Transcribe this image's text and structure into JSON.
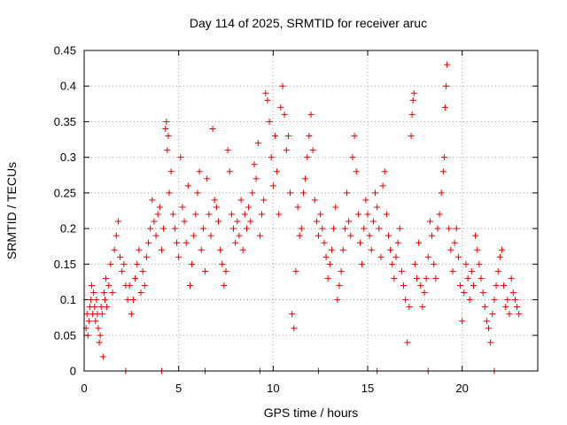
{
  "chart_data": {
    "type": "scatter",
    "title": "Day 114 of 2025, SRMTID for receiver aruc",
    "xlabel": "GPS time / hours",
    "ylabel": "SRMTID / TECUs",
    "xlim": [
      0,
      24
    ],
    "ylim": [
      0,
      0.45
    ],
    "xticks": [
      0,
      5,
      10,
      15,
      20
    ],
    "xtick_labels": [
      "0",
      "5",
      "10",
      "15",
      "20"
    ],
    "yticks": [
      0,
      0.05,
      0.1,
      0.15,
      0.2,
      0.25,
      0.3,
      0.35,
      0.4,
      0.45
    ],
    "ytick_labels": [
      "0",
      "0.05",
      "0.1",
      "0.15",
      "0.2",
      "0.25",
      "0.3",
      "0.35",
      "0.4",
      "0.45"
    ],
    "grid": true,
    "marker": "+",
    "color": "#e00000",
    "series": [
      {
        "name": "SRMTID",
        "points": [
          [
            0.1,
            0.06
          ],
          [
            0.15,
            0.08
          ],
          [
            0.2,
            0.05
          ],
          [
            0.25,
            0.07
          ],
          [
            0.3,
            0.09
          ],
          [
            0.35,
            0.1
          ],
          [
            0.4,
            0.12
          ],
          [
            0.45,
            0.08
          ],
          [
            0.5,
            0.11
          ],
          [
            0.55,
            0.09
          ],
          [
            0.6,
            0.07
          ],
          [
            0.65,
            0.1
          ],
          [
            0.7,
            0.08
          ],
          [
            0.75,
            0.06
          ],
          [
            0.8,
            0.04
          ],
          [
            0.85,
            0.05
          ],
          [
            0.9,
            0.09
          ],
          [
            0.95,
            0.08
          ],
          [
            1.0,
            0.02
          ],
          [
            1.05,
            0.11
          ],
          [
            1.1,
            0.1
          ],
          [
            1.15,
            0.13
          ],
          [
            1.2,
            0.09
          ],
          [
            1.3,
            0.12
          ],
          [
            1.4,
            0.15
          ],
          [
            1.5,
            0.11
          ],
          [
            1.6,
            0.17
          ],
          [
            1.7,
            0.19
          ],
          [
            1.8,
            0.21
          ],
          [
            1.9,
            0.16
          ],
          [
            2.0,
            0.14
          ],
          [
            2.1,
            0.15
          ],
          [
            2.2,
            0.12
          ],
          [
            2.3,
            0.1
          ],
          [
            2.4,
            0.12
          ],
          [
            2.5,
            0.08
          ],
          [
            2.6,
            0.1
          ],
          [
            2.7,
            0.13
          ],
          [
            2.8,
            0.15
          ],
          [
            2.9,
            0.17
          ],
          [
            3.0,
            0.11
          ],
          [
            3.1,
            0.14
          ],
          [
            3.2,
            0.12
          ],
          [
            3.3,
            0.16
          ],
          [
            3.4,
            0.18
          ],
          [
            3.5,
            0.2
          ],
          [
            3.6,
            0.24
          ],
          [
            3.7,
            0.21
          ],
          [
            3.8,
            0.19
          ],
          [
            3.9,
            0.22
          ],
          [
            4.0,
            0.23
          ],
          [
            4.1,
            0.17
          ],
          [
            4.2,
            0.2
          ],
          [
            4.3,
            0.34
          ],
          [
            4.35,
            0.35
          ],
          [
            4.4,
            0.31
          ],
          [
            4.45,
            0.33
          ],
          [
            4.5,
            0.25
          ],
          [
            4.6,
            0.28
          ],
          [
            4.7,
            0.22
          ],
          [
            4.8,
            0.2
          ],
          [
            4.9,
            0.18
          ],
          [
            5.0,
            0.16
          ],
          [
            5.1,
            0.3
          ],
          [
            5.2,
            0.23
          ],
          [
            5.3,
            0.21
          ],
          [
            5.4,
            0.18
          ],
          [
            5.5,
            0.26
          ],
          [
            5.6,
            0.12
          ],
          [
            5.7,
            0.15
          ],
          [
            5.8,
            0.19
          ],
          [
            5.9,
            0.22
          ],
          [
            6.0,
            0.25
          ],
          [
            6.1,
            0.28
          ],
          [
            6.2,
            0.17
          ],
          [
            6.3,
            0.2
          ],
          [
            6.4,
            0.14
          ],
          [
            6.5,
            0.27
          ],
          [
            6.6,
            0.22
          ],
          [
            6.7,
            0.19
          ],
          [
            6.8,
            0.34
          ],
          [
            6.9,
            0.24
          ],
          [
            7.0,
            0.23
          ],
          [
            7.1,
            0.21
          ],
          [
            7.2,
            0.17
          ],
          [
            7.3,
            0.15
          ],
          [
            7.4,
            0.12
          ],
          [
            7.5,
            0.14
          ],
          [
            7.6,
            0.31
          ],
          [
            7.7,
            0.28
          ],
          [
            7.8,
            0.22
          ],
          [
            7.9,
            0.2
          ],
          [
            8.0,
            0.18
          ],
          [
            8.1,
            0.21
          ],
          [
            8.2,
            0.19
          ],
          [
            8.3,
            0.24
          ],
          [
            8.4,
            0.17
          ],
          [
            8.5,
            0.22
          ],
          [
            8.6,
            0.2
          ],
          [
            8.7,
            0.23
          ],
          [
            8.8,
            0.21
          ],
          [
            8.9,
            0.25
          ],
          [
            9.0,
            0.29
          ],
          [
            9.1,
            0.27
          ],
          [
            9.2,
            0.32
          ],
          [
            9.3,
            0.19
          ],
          [
            9.4,
            0.22
          ],
          [
            9.5,
            0.24
          ],
          [
            9.6,
            0.39
          ],
          [
            9.7,
            0.38
          ],
          [
            9.8,
            0.35
          ],
          [
            9.9,
            0.3
          ],
          [
            10.0,
            0.26
          ],
          [
            10.1,
            0.33
          ],
          [
            10.2,
            0.28
          ],
          [
            10.3,
            0.22
          ],
          [
            10.4,
            0.37
          ],
          [
            10.5,
            0.4
          ],
          [
            10.6,
            0.36
          ],
          [
            10.7,
            0.31
          ],
          [
            10.8,
            0.33
          ],
          [
            10.9,
            0.25
          ],
          [
            11.0,
            0.08
          ],
          [
            11.1,
            0.06
          ],
          [
            11.2,
            0.14
          ],
          [
            11.3,
            0.23
          ],
          [
            11.4,
            0.19
          ],
          [
            11.5,
            0.2
          ],
          [
            11.6,
            0.25
          ],
          [
            11.7,
            0.27
          ],
          [
            11.8,
            0.3
          ],
          [
            11.9,
            0.33
          ],
          [
            12.0,
            0.36
          ],
          [
            12.1,
            0.31
          ],
          [
            12.2,
            0.24
          ],
          [
            12.3,
            0.21
          ],
          [
            12.4,
            0.19
          ],
          [
            12.5,
            0.22
          ],
          [
            12.6,
            0.2
          ],
          [
            12.7,
            0.18
          ],
          [
            12.8,
            0.16
          ],
          [
            12.9,
            0.13
          ],
          [
            13.0,
            0.15
          ],
          [
            13.1,
            0.17
          ],
          [
            13.2,
            0.2
          ],
          [
            13.3,
            0.23
          ],
          [
            13.4,
            0.1
          ],
          [
            13.5,
            0.12
          ],
          [
            13.6,
            0.14
          ],
          [
            13.7,
            0.17
          ],
          [
            13.8,
            0.2
          ],
          [
            13.9,
            0.25
          ],
          [
            14.0,
            0.21
          ],
          [
            14.1,
            0.19
          ],
          [
            14.2,
            0.3
          ],
          [
            14.3,
            0.33
          ],
          [
            14.4,
            0.28
          ],
          [
            14.5,
            0.22
          ],
          [
            14.6,
            0.18
          ],
          [
            14.7,
            0.15
          ],
          [
            14.8,
            0.2
          ],
          [
            14.9,
            0.24
          ],
          [
            15.0,
            0.22
          ],
          [
            15.1,
            0.19
          ],
          [
            15.2,
            0.17
          ],
          [
            15.3,
            0.21
          ],
          [
            15.4,
            0.25
          ],
          [
            15.5,
            0.23
          ],
          [
            15.6,
            0.2
          ],
          [
            15.7,
            0.16
          ],
          [
            15.8,
            0.26
          ],
          [
            15.9,
            0.28
          ],
          [
            16.0,
            0.22
          ],
          [
            16.1,
            0.19
          ],
          [
            16.2,
            0.17
          ],
          [
            16.3,
            0.15
          ],
          [
            16.4,
            0.13
          ],
          [
            16.5,
            0.16
          ],
          [
            16.6,
            0.18
          ],
          [
            16.7,
            0.2
          ],
          [
            16.8,
            0.14
          ],
          [
            16.9,
            0.12
          ],
          [
            17.0,
            0.1
          ],
          [
            17.1,
            0.04
          ],
          [
            17.2,
            0.09
          ],
          [
            17.3,
            0.33
          ],
          [
            17.35,
            0.36
          ],
          [
            17.4,
            0.38
          ],
          [
            17.45,
            0.39
          ],
          [
            17.5,
            0.15
          ],
          [
            17.6,
            0.13
          ],
          [
            17.7,
            0.18
          ],
          [
            17.8,
            0.12
          ],
          [
            17.9,
            0.09
          ],
          [
            18.0,
            0.11
          ],
          [
            18.1,
            0.13
          ],
          [
            18.2,
            0.16
          ],
          [
            18.3,
            0.21
          ],
          [
            18.4,
            0.19
          ],
          [
            18.5,
            0.15
          ],
          [
            18.6,
            0.13
          ],
          [
            18.7,
            0.2
          ],
          [
            18.8,
            0.22
          ],
          [
            18.9,
            0.25
          ],
          [
            19.0,
            0.28
          ],
          [
            19.05,
            0.3
          ],
          [
            19.1,
            0.37
          ],
          [
            19.15,
            0.4
          ],
          [
            19.2,
            0.43
          ],
          [
            19.3,
            0.2
          ],
          [
            19.4,
            0.17
          ],
          [
            19.5,
            0.14
          ],
          [
            19.6,
            0.18
          ],
          [
            19.7,
            0.2
          ],
          [
            19.8,
            0.16
          ],
          [
            19.9,
            0.12
          ],
          [
            20.0,
            0.07
          ],
          [
            20.1,
            0.11
          ],
          [
            20.2,
            0.15
          ],
          [
            20.3,
            0.13
          ],
          [
            20.4,
            0.1
          ],
          [
            20.5,
            0.14
          ],
          [
            20.6,
            0.12
          ],
          [
            20.7,
            0.19
          ],
          [
            20.8,
            0.17
          ],
          [
            20.9,
            0.15
          ],
          [
            21.0,
            0.13
          ],
          [
            21.1,
            0.11
          ],
          [
            21.2,
            0.09
          ],
          [
            21.3,
            0.07
          ],
          [
            21.4,
            0.06
          ],
          [
            21.5,
            0.04
          ],
          [
            21.6,
            0.08
          ],
          [
            21.7,
            0.1
          ],
          [
            21.8,
            0.12
          ],
          [
            21.9,
            0.14
          ],
          [
            22.0,
            0.16
          ],
          [
            22.1,
            0.17
          ],
          [
            22.2,
            0.12
          ],
          [
            22.3,
            0.09
          ],
          [
            22.4,
            0.1
          ],
          [
            22.5,
            0.08
          ],
          [
            22.6,
            0.13
          ],
          [
            22.7,
            0.11
          ],
          [
            22.8,
            0.1
          ],
          [
            22.9,
            0.09
          ],
          [
            23.0,
            0.08
          ],
          [
            2.2,
            0.0
          ],
          [
            4.1,
            0.0
          ],
          [
            6.4,
            0.0
          ],
          [
            9.3,
            0.0
          ],
          [
            12.4,
            0.0
          ],
          [
            15.5,
            0.0
          ],
          [
            18.2,
            0.0
          ],
          [
            21.7,
            0.0
          ]
        ]
      }
    ]
  }
}
